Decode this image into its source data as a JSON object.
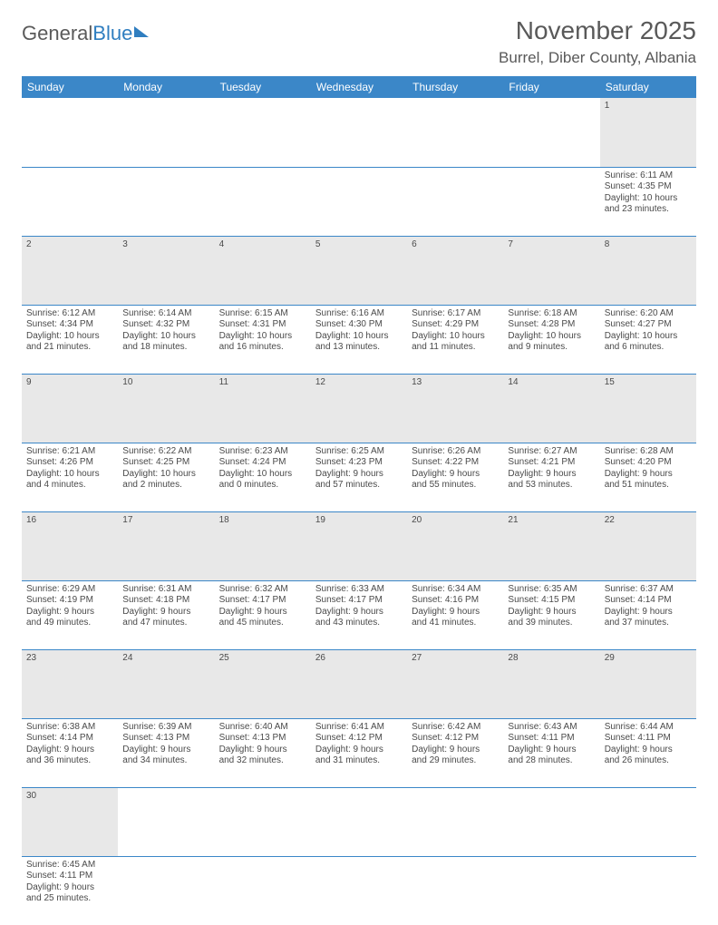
{
  "logo": {
    "text1": "General",
    "text2": "Blue"
  },
  "title": "November 2025",
  "location": "Burrel, Diber County, Albania",
  "colors": {
    "header_bg": "#3b87c8",
    "header_text": "#ffffff",
    "daynum_bg": "#e8e8e8",
    "border": "#3b87c8",
    "text": "#4a4a4a",
    "title_text": "#595959"
  },
  "weekdays": [
    "Sunday",
    "Monday",
    "Tuesday",
    "Wednesday",
    "Thursday",
    "Friday",
    "Saturday"
  ],
  "weeks": [
    [
      null,
      null,
      null,
      null,
      null,
      null,
      {
        "n": "1",
        "sr": "Sunrise: 6:11 AM",
        "ss": "Sunset: 4:35 PM",
        "d1": "Daylight: 10 hours",
        "d2": "and 23 minutes."
      }
    ],
    [
      {
        "n": "2",
        "sr": "Sunrise: 6:12 AM",
        "ss": "Sunset: 4:34 PM",
        "d1": "Daylight: 10 hours",
        "d2": "and 21 minutes."
      },
      {
        "n": "3",
        "sr": "Sunrise: 6:14 AM",
        "ss": "Sunset: 4:32 PM",
        "d1": "Daylight: 10 hours",
        "d2": "and 18 minutes."
      },
      {
        "n": "4",
        "sr": "Sunrise: 6:15 AM",
        "ss": "Sunset: 4:31 PM",
        "d1": "Daylight: 10 hours",
        "d2": "and 16 minutes."
      },
      {
        "n": "5",
        "sr": "Sunrise: 6:16 AM",
        "ss": "Sunset: 4:30 PM",
        "d1": "Daylight: 10 hours",
        "d2": "and 13 minutes."
      },
      {
        "n": "6",
        "sr": "Sunrise: 6:17 AM",
        "ss": "Sunset: 4:29 PM",
        "d1": "Daylight: 10 hours",
        "d2": "and 11 minutes."
      },
      {
        "n": "7",
        "sr": "Sunrise: 6:18 AM",
        "ss": "Sunset: 4:28 PM",
        "d1": "Daylight: 10 hours",
        "d2": "and 9 minutes."
      },
      {
        "n": "8",
        "sr": "Sunrise: 6:20 AM",
        "ss": "Sunset: 4:27 PM",
        "d1": "Daylight: 10 hours",
        "d2": "and 6 minutes."
      }
    ],
    [
      {
        "n": "9",
        "sr": "Sunrise: 6:21 AM",
        "ss": "Sunset: 4:26 PM",
        "d1": "Daylight: 10 hours",
        "d2": "and 4 minutes."
      },
      {
        "n": "10",
        "sr": "Sunrise: 6:22 AM",
        "ss": "Sunset: 4:25 PM",
        "d1": "Daylight: 10 hours",
        "d2": "and 2 minutes."
      },
      {
        "n": "11",
        "sr": "Sunrise: 6:23 AM",
        "ss": "Sunset: 4:24 PM",
        "d1": "Daylight: 10 hours",
        "d2": "and 0 minutes."
      },
      {
        "n": "12",
        "sr": "Sunrise: 6:25 AM",
        "ss": "Sunset: 4:23 PM",
        "d1": "Daylight: 9 hours",
        "d2": "and 57 minutes."
      },
      {
        "n": "13",
        "sr": "Sunrise: 6:26 AM",
        "ss": "Sunset: 4:22 PM",
        "d1": "Daylight: 9 hours",
        "d2": "and 55 minutes."
      },
      {
        "n": "14",
        "sr": "Sunrise: 6:27 AM",
        "ss": "Sunset: 4:21 PM",
        "d1": "Daylight: 9 hours",
        "d2": "and 53 minutes."
      },
      {
        "n": "15",
        "sr": "Sunrise: 6:28 AM",
        "ss": "Sunset: 4:20 PM",
        "d1": "Daylight: 9 hours",
        "d2": "and 51 minutes."
      }
    ],
    [
      {
        "n": "16",
        "sr": "Sunrise: 6:29 AM",
        "ss": "Sunset: 4:19 PM",
        "d1": "Daylight: 9 hours",
        "d2": "and 49 minutes."
      },
      {
        "n": "17",
        "sr": "Sunrise: 6:31 AM",
        "ss": "Sunset: 4:18 PM",
        "d1": "Daylight: 9 hours",
        "d2": "and 47 minutes."
      },
      {
        "n": "18",
        "sr": "Sunrise: 6:32 AM",
        "ss": "Sunset: 4:17 PM",
        "d1": "Daylight: 9 hours",
        "d2": "and 45 minutes."
      },
      {
        "n": "19",
        "sr": "Sunrise: 6:33 AM",
        "ss": "Sunset: 4:17 PM",
        "d1": "Daylight: 9 hours",
        "d2": "and 43 minutes."
      },
      {
        "n": "20",
        "sr": "Sunrise: 6:34 AM",
        "ss": "Sunset: 4:16 PM",
        "d1": "Daylight: 9 hours",
        "d2": "and 41 minutes."
      },
      {
        "n": "21",
        "sr": "Sunrise: 6:35 AM",
        "ss": "Sunset: 4:15 PM",
        "d1": "Daylight: 9 hours",
        "d2": "and 39 minutes."
      },
      {
        "n": "22",
        "sr": "Sunrise: 6:37 AM",
        "ss": "Sunset: 4:14 PM",
        "d1": "Daylight: 9 hours",
        "d2": "and 37 minutes."
      }
    ],
    [
      {
        "n": "23",
        "sr": "Sunrise: 6:38 AM",
        "ss": "Sunset: 4:14 PM",
        "d1": "Daylight: 9 hours",
        "d2": "and 36 minutes."
      },
      {
        "n": "24",
        "sr": "Sunrise: 6:39 AM",
        "ss": "Sunset: 4:13 PM",
        "d1": "Daylight: 9 hours",
        "d2": "and 34 minutes."
      },
      {
        "n": "25",
        "sr": "Sunrise: 6:40 AM",
        "ss": "Sunset: 4:13 PM",
        "d1": "Daylight: 9 hours",
        "d2": "and 32 minutes."
      },
      {
        "n": "26",
        "sr": "Sunrise: 6:41 AM",
        "ss": "Sunset: 4:12 PM",
        "d1": "Daylight: 9 hours",
        "d2": "and 31 minutes."
      },
      {
        "n": "27",
        "sr": "Sunrise: 6:42 AM",
        "ss": "Sunset: 4:12 PM",
        "d1": "Daylight: 9 hours",
        "d2": "and 29 minutes."
      },
      {
        "n": "28",
        "sr": "Sunrise: 6:43 AM",
        "ss": "Sunset: 4:11 PM",
        "d1": "Daylight: 9 hours",
        "d2": "and 28 minutes."
      },
      {
        "n": "29",
        "sr": "Sunrise: 6:44 AM",
        "ss": "Sunset: 4:11 PM",
        "d1": "Daylight: 9 hours",
        "d2": "and 26 minutes."
      }
    ],
    [
      {
        "n": "30",
        "sr": "Sunrise: 6:45 AM",
        "ss": "Sunset: 4:11 PM",
        "d1": "Daylight: 9 hours",
        "d2": "and 25 minutes."
      },
      null,
      null,
      null,
      null,
      null,
      null
    ]
  ]
}
